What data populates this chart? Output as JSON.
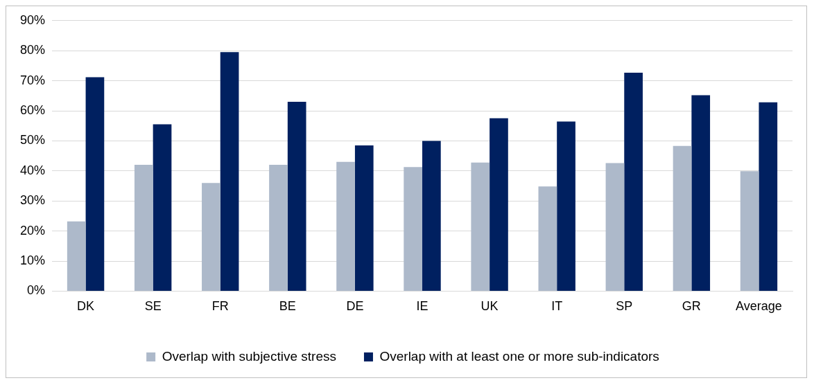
{
  "chart_data": {
    "type": "bar",
    "categories": [
      "DK",
      "SE",
      "FR",
      "BE",
      "DE",
      "IE",
      "UK",
      "IT",
      "SP",
      "GR",
      "Average"
    ],
    "series": [
      {
        "name": "Overlap with subjective stress",
        "color": "#adb9ca",
        "values": [
          23.2,
          42,
          36,
          42,
          43,
          41.3,
          42.8,
          34.8,
          42.6,
          48.3,
          39.9
        ]
      },
      {
        "name": "Overlap with at least one or more sub-indicators",
        "color": "#002060",
        "values": [
          71.2,
          55.5,
          79.5,
          63,
          48.5,
          50,
          57.5,
          56.4,
          72.7,
          65.2,
          62.8
        ]
      }
    ],
    "ylim": [
      0,
      90
    ],
    "yticks": [
      {
        "value": 0,
        "label": "0%"
      },
      {
        "value": 10,
        "label": "10%"
      },
      {
        "value": 20,
        "label": "20%"
      },
      {
        "value": 30,
        "label": "30%"
      },
      {
        "value": 40,
        "label": "40%"
      },
      {
        "value": 50,
        "label": "50%"
      },
      {
        "value": 60,
        "label": "60%"
      },
      {
        "value": 70,
        "label": "70%"
      },
      {
        "value": 80,
        "label": "80%"
      },
      {
        "value": 90,
        "label": "90%"
      }
    ],
    "grid": "y",
    "legend": "bottom"
  }
}
